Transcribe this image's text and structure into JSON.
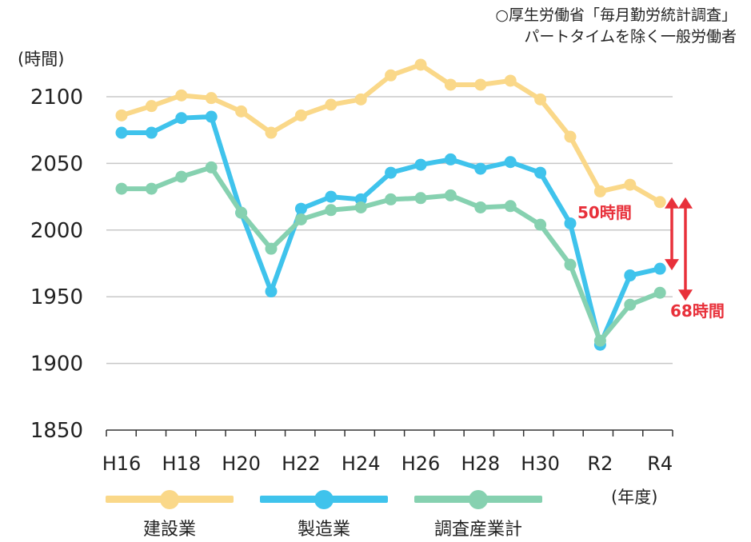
{
  "source_note": {
    "line1": "○厚生労働省「毎月勤労統計調査」",
    "line2": "パートタイムを除く一般労働者"
  },
  "axis": {
    "y_unit": "(時間)",
    "x_unit": "(年度)"
  },
  "annotations": {
    "gap1": "50時間",
    "gap2": "68時間"
  },
  "legend": {
    "items": [
      {
        "label": "建設業",
        "color": "#fad889"
      },
      {
        "label": "製造業",
        "color": "#3fc3ec"
      },
      {
        "label": "調査産業計",
        "color": "#86d1b0"
      }
    ]
  },
  "chart_data": {
    "type": "line",
    "x": [
      "H16",
      "H17",
      "H18",
      "H19",
      "H20",
      "H21",
      "H22",
      "H23",
      "H24",
      "H25",
      "H26",
      "H27",
      "H28",
      "H29",
      "H30",
      "R1",
      "R2",
      "R3",
      "R4"
    ],
    "x_tick_labels": [
      "H16",
      "H18",
      "H20",
      "H22",
      "H24",
      "H26",
      "H28",
      "H30",
      "R2",
      "R4"
    ],
    "ylim": [
      1850,
      2100
    ],
    "y_ticks": [
      1850,
      1900,
      1950,
      2000,
      2050,
      2100
    ],
    "grid": true,
    "legend_position": "bottom",
    "series": [
      {
        "name": "建設業",
        "color": "#fad889",
        "values": [
          2086,
          2093,
          2101,
          2099,
          2089,
          2073,
          2086,
          2094,
          2098,
          2116,
          2124,
          2109,
          2109,
          2112,
          2098,
          2070,
          2029,
          2034,
          2021
        ]
      },
      {
        "name": "製造業",
        "color": "#3fc3ec",
        "values": [
          2073,
          2073,
          2084,
          2085,
          2013,
          1954,
          2016,
          2025,
          2023,
          2043,
          2049,
          2053,
          2046,
          2051,
          2043,
          2005,
          1914,
          1966,
          1971
        ]
      },
      {
        "name": "調査産業計",
        "color": "#86d1b0",
        "values": [
          2031,
          2031,
          2040,
          2047,
          2013,
          1986,
          2008,
          2015,
          2017,
          2023,
          2024,
          2026,
          2017,
          2018,
          2004,
          1974,
          1917,
          1944,
          1953
        ]
      }
    ]
  }
}
